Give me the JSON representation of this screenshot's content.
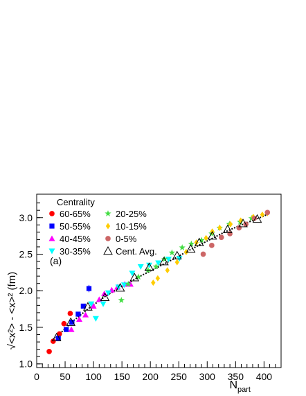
{
  "chart_data": {
    "type": "scatter",
    "xlabel": "N",
    "xlabel_sub": "part",
    "ylabel": "√<x²> - <x>² (fm)",
    "xlim": [
      0,
      430
    ],
    "ylim": [
      0.95,
      3.32
    ],
    "x_ticks": [
      0,
      50,
      100,
      150,
      200,
      250,
      300,
      350,
      400
    ],
    "y_ticks": [
      1.0,
      1.5,
      2.0,
      2.5,
      3.0
    ],
    "y_tick_labels": [
      "1.0",
      "1.5",
      "2.0",
      "2.5",
      "3.0"
    ],
    "panel_label": "(a)",
    "legend_title": "Centrality",
    "grid": false,
    "legend_position": "top-left",
    "series": [
      {
        "name": "60-65%",
        "color": "#ff0000",
        "marker": "circle",
        "points": [
          [
            22,
            1.17
          ],
          [
            29,
            1.31
          ],
          [
            40,
            1.41
          ],
          [
            48,
            1.55
          ],
          [
            59,
            1.69
          ]
        ]
      },
      {
        "name": "50-55%",
        "color": "#0000ff",
        "marker": "square",
        "points": [
          [
            38,
            1.35
          ],
          [
            52,
            1.47
          ],
          [
            62,
            1.57
          ],
          [
            73,
            1.68
          ],
          [
            82,
            1.79
          ],
          [
            92,
            2.03
          ]
        ]
      },
      {
        "name": "40-45%",
        "color": "#ff00ff",
        "marker": "triangle-up",
        "points": [
          [
            61,
            1.47
          ],
          [
            75,
            1.61
          ],
          [
            86,
            1.67
          ],
          [
            100,
            1.79
          ],
          [
            110,
            1.88
          ],
          [
            119,
            1.96
          ],
          [
            132,
            2.01
          ],
          [
            142,
            2.05
          ],
          [
            155,
            2.09
          ],
          [
            165,
            2.09
          ]
        ]
      },
      {
        "name": "30-35%",
        "color": "#00ffff",
        "marker": "triangle-down",
        "points": [
          [
            96,
            1.82
          ],
          [
            104,
            1.62
          ],
          [
            117,
            1.82
          ],
          [
            126,
            1.97
          ],
          [
            144,
            2.05
          ],
          [
            154,
            2.08
          ],
          [
            168,
            2.24
          ],
          [
            183,
            2.33
          ],
          [
            198,
            2.35
          ],
          [
            214,
            2.38
          ],
          [
            232,
            2.43
          ],
          [
            251,
            2.44
          ]
        ]
      },
      {
        "name": "20-25%",
        "color": "#44dd44",
        "marker": "star",
        "points": [
          [
            149,
            1.87
          ],
          [
            161,
            2.09
          ],
          [
            179,
            2.19
          ],
          [
            196,
            2.28
          ],
          [
            210,
            2.33
          ],
          [
            225,
            2.43
          ],
          [
            238,
            2.52
          ],
          [
            256,
            2.59
          ],
          [
            272,
            2.64
          ],
          [
            290,
            2.69
          ],
          [
            308,
            2.78
          ],
          [
            322,
            2.86
          ],
          [
            339,
            2.91
          ],
          [
            358,
            2.94
          ],
          [
            378,
            2.99
          ]
        ]
      },
      {
        "name": "10-15%",
        "color": "#ffcc00",
        "marker": "diamond",
        "points": [
          [
            205,
            2.11
          ],
          [
            213,
            2.17
          ],
          [
            230,
            2.28
          ],
          [
            247,
            2.39
          ],
          [
            263,
            2.53
          ],
          [
            281,
            2.66
          ],
          [
            298,
            2.72
          ],
          [
            309,
            2.81
          ],
          [
            322,
            2.86
          ],
          [
            341,
            2.91
          ],
          [
            359,
            2.96
          ],
          [
            381,
            3.01
          ],
          [
            397,
            3.04
          ],
          [
            406,
            3.06
          ]
        ]
      },
      {
        "name": "0-5%",
        "color": "#cc6666",
        "marker": "circle",
        "points": [
          [
            293,
            2.5
          ],
          [
            308,
            2.62
          ],
          [
            325,
            2.73
          ],
          [
            340,
            2.78
          ],
          [
            356,
            2.86
          ],
          [
            368,
            2.91
          ],
          [
            383,
            2.99
          ],
          [
            406,
            3.07
          ]
        ]
      },
      {
        "name": "Cent. Avg.",
        "color": "#000000",
        "marker": "open-triangle",
        "points": [
          [
            35,
            1.36
          ],
          [
            60,
            1.57
          ],
          [
            90,
            1.78
          ],
          [
            120,
            1.91
          ],
          [
            147,
            2.04
          ],
          [
            172,
            2.18
          ],
          [
            198,
            2.32
          ],
          [
            224,
            2.4
          ],
          [
            247,
            2.48
          ],
          [
            271,
            2.57
          ],
          [
            286,
            2.66
          ],
          [
            309,
            2.75
          ],
          [
            336,
            2.84
          ],
          [
            363,
            2.92
          ],
          [
            388,
            2.98
          ]
        ]
      }
    ],
    "fit_line": {
      "style": "dotted",
      "color": "#000000",
      "points": [
        [
          30,
          1.33
        ],
        [
          60,
          1.56
        ],
        [
          90,
          1.75
        ],
        [
          120,
          1.92
        ],
        [
          150,
          2.06
        ],
        [
          180,
          2.19
        ],
        [
          210,
          2.31
        ],
        [
          240,
          2.43
        ],
        [
          270,
          2.56
        ],
        [
          300,
          2.68
        ],
        [
          330,
          2.8
        ],
        [
          360,
          2.9
        ],
        [
          390,
          2.99
        ],
        [
          405,
          3.04
        ]
      ]
    }
  }
}
